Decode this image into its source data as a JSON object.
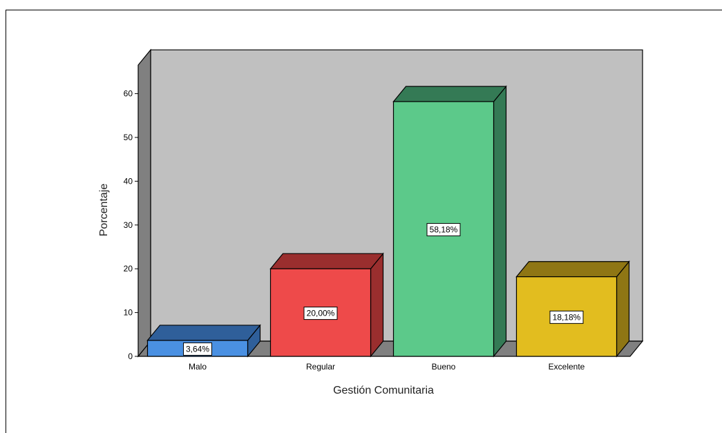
{
  "chart_data": {
    "type": "bar",
    "categories": [
      "Malo",
      "Regular",
      "Bueno",
      "Excelente"
    ],
    "values": [
      3.64,
      20.0,
      58.18,
      18.18
    ],
    "data_labels": [
      "3,64%",
      "20,00%",
      "58,18%",
      "18,18%"
    ],
    "xlabel": "Gestión Comunitaria",
    "ylabel": "Porcentaje",
    "ylim": [
      0,
      70
    ],
    "yticks": [
      0,
      10,
      20,
      30,
      40,
      50,
      60
    ],
    "grid": false,
    "three_d": true,
    "bar_colors": [
      "#4a90e2",
      "#ee4a4a",
      "#5cc98a",
      "#e2bd1f"
    ],
    "bar_side_colors": [
      "#2f5f9a",
      "#9a2e2e",
      "#347a55",
      "#8f7614"
    ],
    "wall_color": "#c0c0c0",
    "wall_side_color": "#808080",
    "floor_color": "#808080"
  }
}
